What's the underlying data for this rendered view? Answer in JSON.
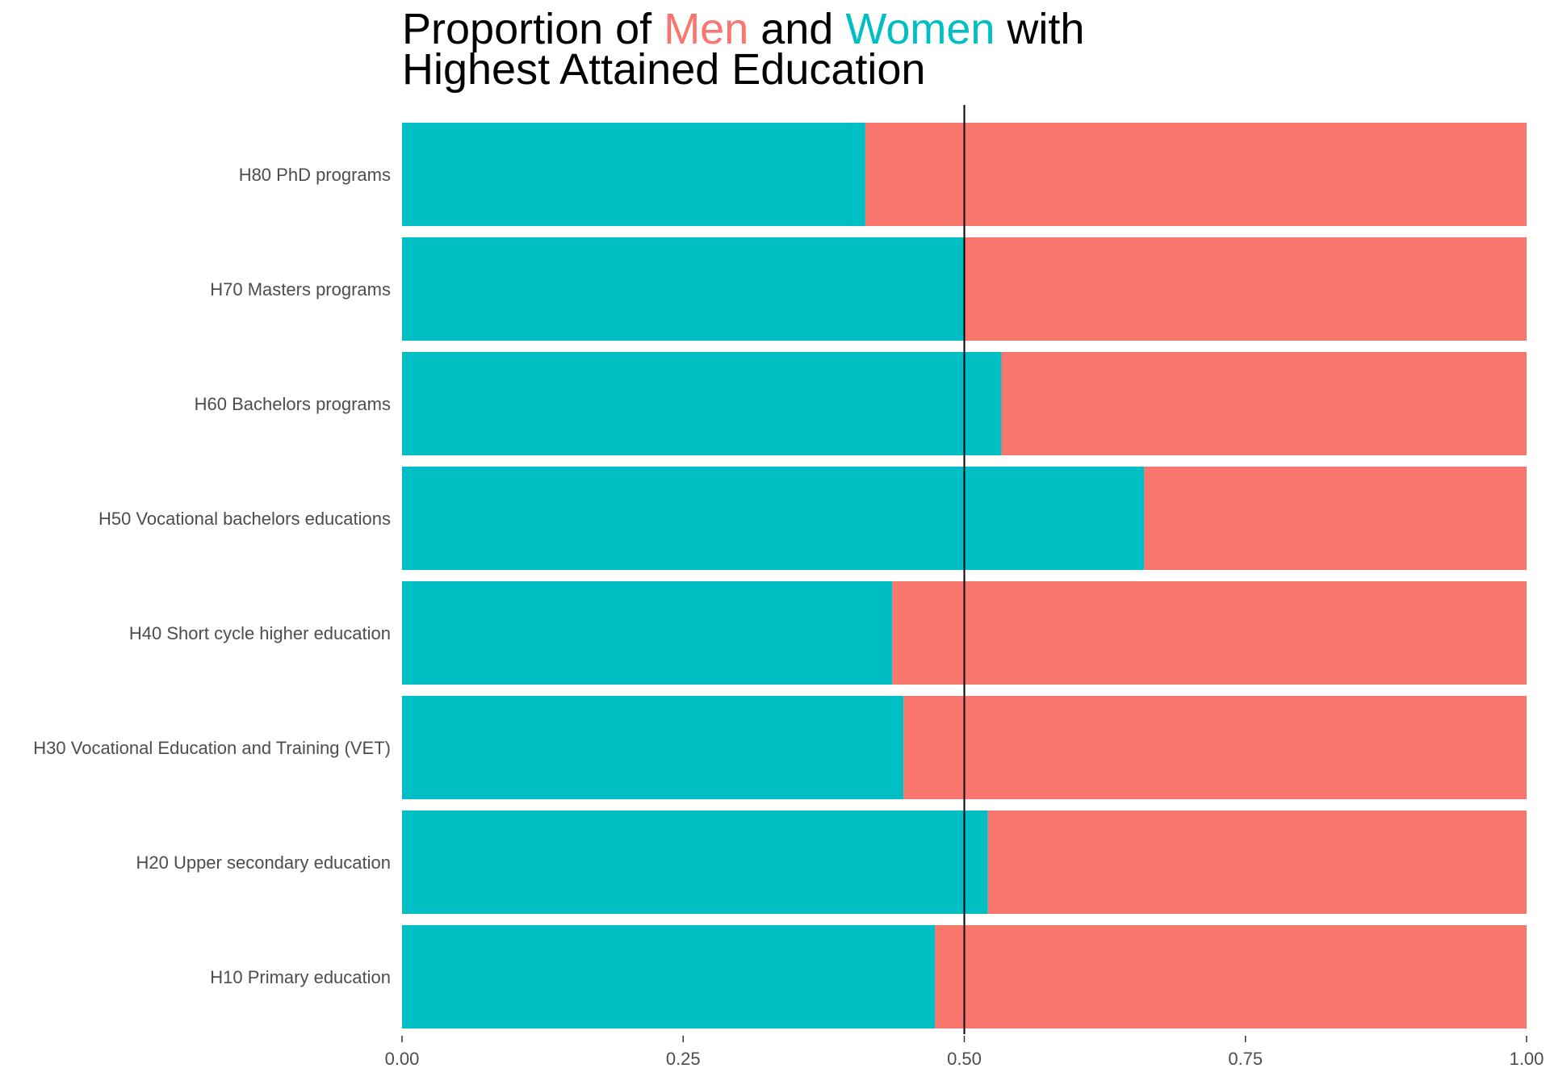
{
  "chart_data": {
    "type": "bar",
    "orientation": "horizontal",
    "stacked": true,
    "normalized": true,
    "title": {
      "line1": [
        {
          "text": "Proportion of ",
          "role": "plain"
        },
        {
          "text": "Men",
          "role": "men"
        },
        {
          "text": " and ",
          "role": "plain"
        },
        {
          "text": "Women",
          "role": "women"
        },
        {
          "text": " with",
          "role": "plain"
        }
      ],
      "line2": "Highest Attained Education"
    },
    "categories": [
      "H80 PhD programs",
      "H70 Masters programs",
      "H60 Bachelors programs",
      "H50 Vocational bachelors educations",
      "H40 Short cycle higher education",
      "H30 Vocational Education and Training (VET)",
      "H20 Upper secondary education",
      "H10 Primary education"
    ],
    "series": [
      {
        "name": "Women",
        "color": "#00BFC4",
        "values": [
          0.412,
          0.5,
          0.533,
          0.66,
          0.436,
          0.446,
          0.521,
          0.474
        ]
      },
      {
        "name": "Men",
        "color": "#F8766D",
        "values": [
          0.588,
          0.5,
          0.467,
          0.34,
          0.564,
          0.554,
          0.479,
          0.526
        ]
      }
    ],
    "xlim": [
      0,
      1
    ],
    "xticks": [
      {
        "value": 0,
        "label": "0.00"
      },
      {
        "value": 0.25,
        "label": "0.25"
      },
      {
        "value": 0.5,
        "label": "0.50"
      },
      {
        "value": 0.75,
        "label": "0.75"
      },
      {
        "value": 1,
        "label": "1.00"
      }
    ],
    "reference_line": 0.5,
    "xlabel": "",
    "ylabel": "",
    "grid": false,
    "legend": "none"
  },
  "colors": {
    "men": "#F8766D",
    "women": "#00BFC4",
    "title": "#000000",
    "axis_text": "#4d4d4d",
    "reference_line": "#000000"
  }
}
